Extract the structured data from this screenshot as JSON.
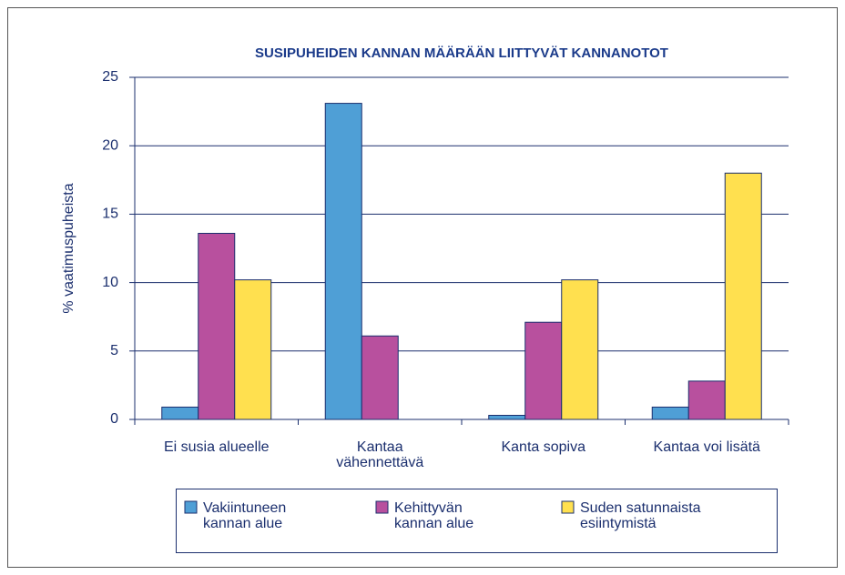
{
  "chart_data": {
    "type": "bar",
    "title": "SUSIPUHEIDEN KANNAN MÄÄRÄÄN LIITTYVÄT KANNANOTOT",
    "y_label": "% vaatimuspuheista",
    "categories": [
      "Ei susia alueelle",
      "Kantaa\nvähennettävä",
      "Kanta sopiva",
      "Kantaa voi lisätä"
    ],
    "series": [
      {
        "name": "Vakiintuneen\nkannan alue",
        "color": "#4f9fd6",
        "values": [
          0.9,
          23.1,
          0.3,
          0.9
        ]
      },
      {
        "name": "Kehittyvän\nkannan alue",
        "color": "#b8509e",
        "values": [
          13.6,
          6.1,
          7.1,
          2.8
        ]
      },
      {
        "name": "Suden satunnaista\nesiintymistä",
        "color": "#ffe04f",
        "values": [
          10.2,
          0,
          10.2,
          18.0
        ]
      }
    ],
    "ylim": [
      0,
      25
    ],
    "yticks": [
      0,
      5,
      10,
      15,
      20,
      25
    ],
    "grid": true,
    "legend": "bottom"
  }
}
